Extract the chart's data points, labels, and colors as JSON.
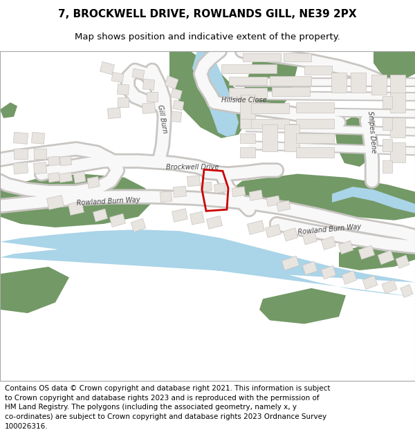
{
  "title_line1": "7, BROCKWELL DRIVE, ROWLANDS GILL, NE39 2PX",
  "title_line2": "Map shows position and indicative extent of the property.",
  "footer_text": "Contains OS data © Crown copyright and database right 2021. This information is subject to Crown copyright and database rights 2023 and is reproduced with the permission of HM Land Registry. The polygons (including the associated geometry, namely x, y co-ordinates) are subject to Crown copyright and database rights 2023 Ordnance Survey 100026316.",
  "map_bg": "#ffffff",
  "road_outline": "#cccccc",
  "road_fill": "#f5f5f5",
  "green_color": "#739966",
  "river_color": "#aad4e8",
  "highlight_color": "#cc0000",
  "building_color": "#e8e4e0",
  "building_outline": "#c8c4c0",
  "title_fontsize": 11,
  "subtitle_fontsize": 9.5,
  "footer_fontsize": 7.5,
  "label_color": "#444444",
  "label_fontsize": 7
}
